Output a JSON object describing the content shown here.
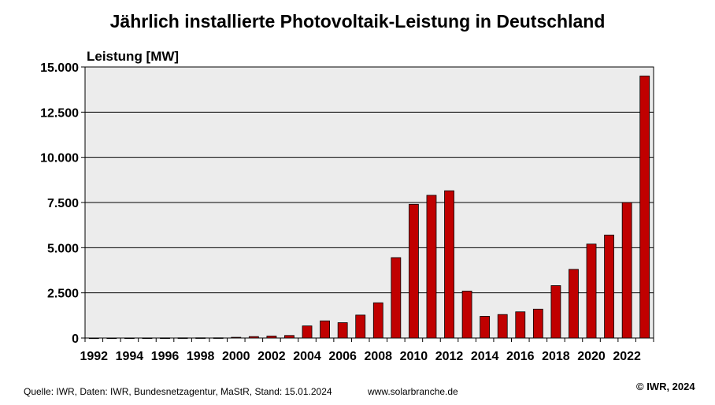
{
  "chart_data": {
    "type": "bar",
    "title": "Jährlich installierte Photovoltaik-Leistung in Deutschland",
    "ylabel": "Leistung [MW]",
    "xlabel": "",
    "ylim": [
      0,
      15000
    ],
    "yticks": [
      0,
      2500,
      5000,
      7500,
      10000,
      12500,
      15000
    ],
    "ytick_labels": [
      "0",
      "2.500",
      "5.000",
      "7.500",
      "10.000",
      "12.500",
      "15.000"
    ],
    "categories": [
      "1992",
      "1993",
      "1994",
      "1995",
      "1996",
      "1997",
      "1998",
      "1999",
      "2000",
      "2001",
      "2002",
      "2003",
      "2004",
      "2005",
      "2006",
      "2007",
      "2008",
      "2009",
      "2010",
      "2011",
      "2012",
      "2013",
      "2014",
      "2015",
      "2016",
      "2017",
      "2018",
      "2019",
      "2020",
      "2021",
      "2022",
      "2023"
    ],
    "xtick_labels": [
      "1992",
      "1994",
      "1996",
      "1998",
      "2000",
      "2002",
      "2004",
      "2006",
      "2008",
      "2010",
      "2012",
      "2014",
      "2016",
      "2018",
      "2020",
      "2022"
    ],
    "values": [
      3,
      5,
      6,
      7,
      9,
      11,
      12,
      12,
      40,
      80,
      110,
      140,
      670,
      950,
      850,
      1270,
      1950,
      4450,
      7400,
      7900,
      8150,
      2600,
      1200,
      1300,
      1450,
      1600,
      2900,
      3800,
      5200,
      5700,
      7500,
      14500
    ],
    "grid": true,
    "colors": {
      "bar": "#c00000",
      "plot_background": "#ececec",
      "gridline": "#000000"
    }
  },
  "footer": {
    "source": "Quelle: IWR, Daten: IWR, Bundesnetzagentur, MaStR, Stand: 15.01.2024",
    "url": "www.solarbranche.de",
    "copyright": "© IWR, 2024"
  }
}
